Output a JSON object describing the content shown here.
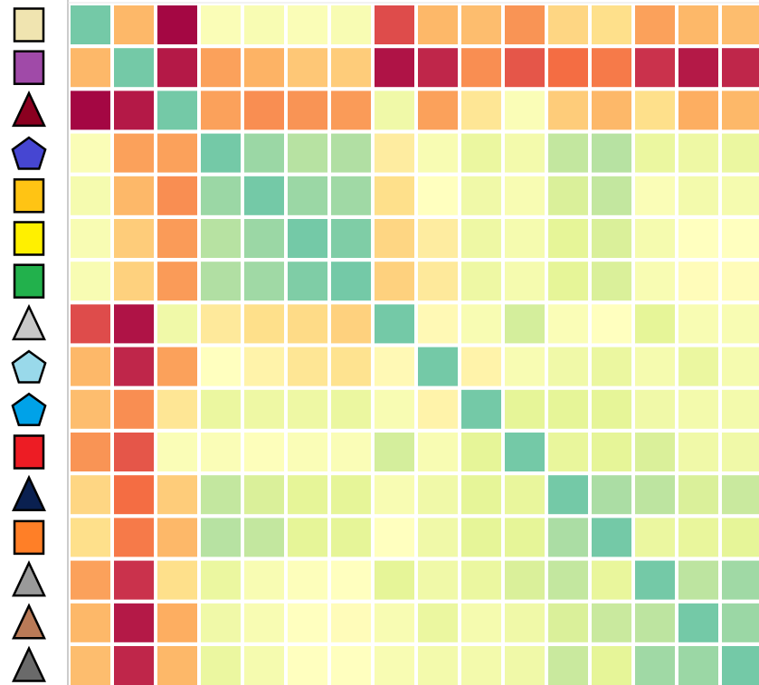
{
  "chart_data": {
    "type": "heatmap",
    "vlim": [
      0,
      8
    ],
    "colorscale": [
      "#9e0142",
      "#d53e4f",
      "#f46d43",
      "#fdae61",
      "#fee08b",
      "#ffffbf",
      "#e6f598",
      "#abdda4",
      "#74c9a7"
    ],
    "rows": [
      {
        "shape": "square",
        "color": "#f0e4b0"
      },
      {
        "shape": "square",
        "color": "#a04aa8"
      },
      {
        "shape": "triangle",
        "color": "#8b0020"
      },
      {
        "shape": "pentagon",
        "color": "#4646d2"
      },
      {
        "shape": "square",
        "color": "#ffc414"
      },
      {
        "shape": "square",
        "color": "#fff000"
      },
      {
        "shape": "square",
        "color": "#22b14c"
      },
      {
        "shape": "triangle",
        "color": "#c8c8c8"
      },
      {
        "shape": "pentagon",
        "color": "#99d9ea"
      },
      {
        "shape": "pentagon",
        "color": "#00a2e8"
      },
      {
        "shape": "square",
        "color": "#ed1c24"
      },
      {
        "shape": "triangle",
        "color": "#0a2050"
      },
      {
        "shape": "square",
        "color": "#ff7f27"
      },
      {
        "shape": "triangle",
        "color": "#9a9a9a"
      },
      {
        "shape": "triangle",
        "color": "#b97a57"
      },
      {
        "shape": "triangle",
        "color": "#6a6a6a"
      }
    ],
    "values": [
      [
        8,
        3.2,
        0.1,
        5.2,
        5.3,
        5.2,
        5.3,
        1.3,
        3.2,
        3.3,
        2.6,
        3.8,
        4.0,
        2.8,
        3.2,
        3.3
      ],
      [
        3.2,
        8,
        0.4,
        2.8,
        3.1,
        3.5,
        3.6,
        0.3,
        0.6,
        2.5,
        1.5,
        2.0,
        2.2,
        0.8,
        0.4,
        0.6
      ],
      [
        0.1,
        0.4,
        8,
        2.8,
        2.5,
        2.6,
        2.7,
        5.6,
        2.8,
        4.2,
        5.2,
        3.6,
        3.2,
        4.0,
        3.0,
        3.2
      ],
      [
        5.2,
        2.8,
        2.8,
        8,
        7.3,
        6.8,
        6.9,
        4.4,
        5.3,
        5.8,
        5.5,
        6.6,
        6.8,
        5.8,
        5.7,
        5.8
      ],
      [
        5.4,
        3.2,
        2.5,
        7.3,
        8,
        7.3,
        7.2,
        4.0,
        5.0,
        5.6,
        5.3,
        6.2,
        6.6,
        5.2,
        5.5,
        5.4
      ],
      [
        5.3,
        3.6,
        2.7,
        6.8,
        7.3,
        8,
        7.8,
        3.8,
        4.4,
        5.7,
        5.4,
        6.0,
        6.2,
        5.4,
        5.0,
        5.0
      ],
      [
        5.3,
        3.7,
        2.7,
        6.9,
        7.2,
        7.8,
        8,
        3.7,
        4.3,
        5.7,
        5.4,
        6.0,
        6.2,
        5.3,
        4.9,
        4.9
      ],
      [
        1.3,
        0.3,
        5.6,
        4.3,
        4.0,
        3.9,
        3.7,
        8,
        4.8,
        5.3,
        6.3,
        5.2,
        5.0,
        6.0,
        5.3,
        5.3
      ],
      [
        3.2,
        0.6,
        2.8,
        5.0,
        4.6,
        4.2,
        4.1,
        4.8,
        8,
        4.6,
        5.3,
        5.6,
        5.8,
        5.4,
        5.8,
        5.4
      ],
      [
        3.3,
        2.5,
        4.2,
        5.8,
        5.7,
        5.7,
        5.8,
        5.3,
        4.6,
        8,
        6.0,
        6.0,
        6.0,
        5.6,
        5.5,
        5.5
      ],
      [
        2.6,
        1.5,
        5.2,
        5.2,
        5.1,
        5.2,
        5.2,
        6.3,
        5.3,
        6.0,
        8,
        5.9,
        6.0,
        6.2,
        5.6,
        5.6
      ],
      [
        3.8,
        2.0,
        3.6,
        6.6,
        6.2,
        6.0,
        6.0,
        5.3,
        5.6,
        6.0,
        5.9,
        8,
        7.0,
        6.7,
        6.2,
        6.5
      ],
      [
        4.0,
        2.2,
        3.2,
        6.8,
        6.6,
        6.0,
        6.0,
        5.0,
        5.6,
        6.0,
        6.0,
        7.0,
        8,
        5.8,
        5.9,
        6.0
      ],
      [
        2.8,
        0.8,
        4.0,
        5.8,
        5.3,
        5.1,
        5.0,
        6.0,
        5.6,
        5.8,
        6.2,
        6.6,
        5.9,
        8,
        6.7,
        7.2
      ],
      [
        3.2,
        0.4,
        3.0,
        5.6,
        5.3,
        5.0,
        4.9,
        5.3,
        5.8,
        5.4,
        5.6,
        6.2,
        6.5,
        6.7,
        8,
        7.3
      ],
      [
        3.3,
        0.6,
        3.2,
        5.8,
        5.4,
        5.0,
        5.0,
        5.3,
        5.5,
        5.5,
        5.6,
        6.5,
        6.0,
        7.2,
        7.3,
        8
      ]
    ]
  }
}
